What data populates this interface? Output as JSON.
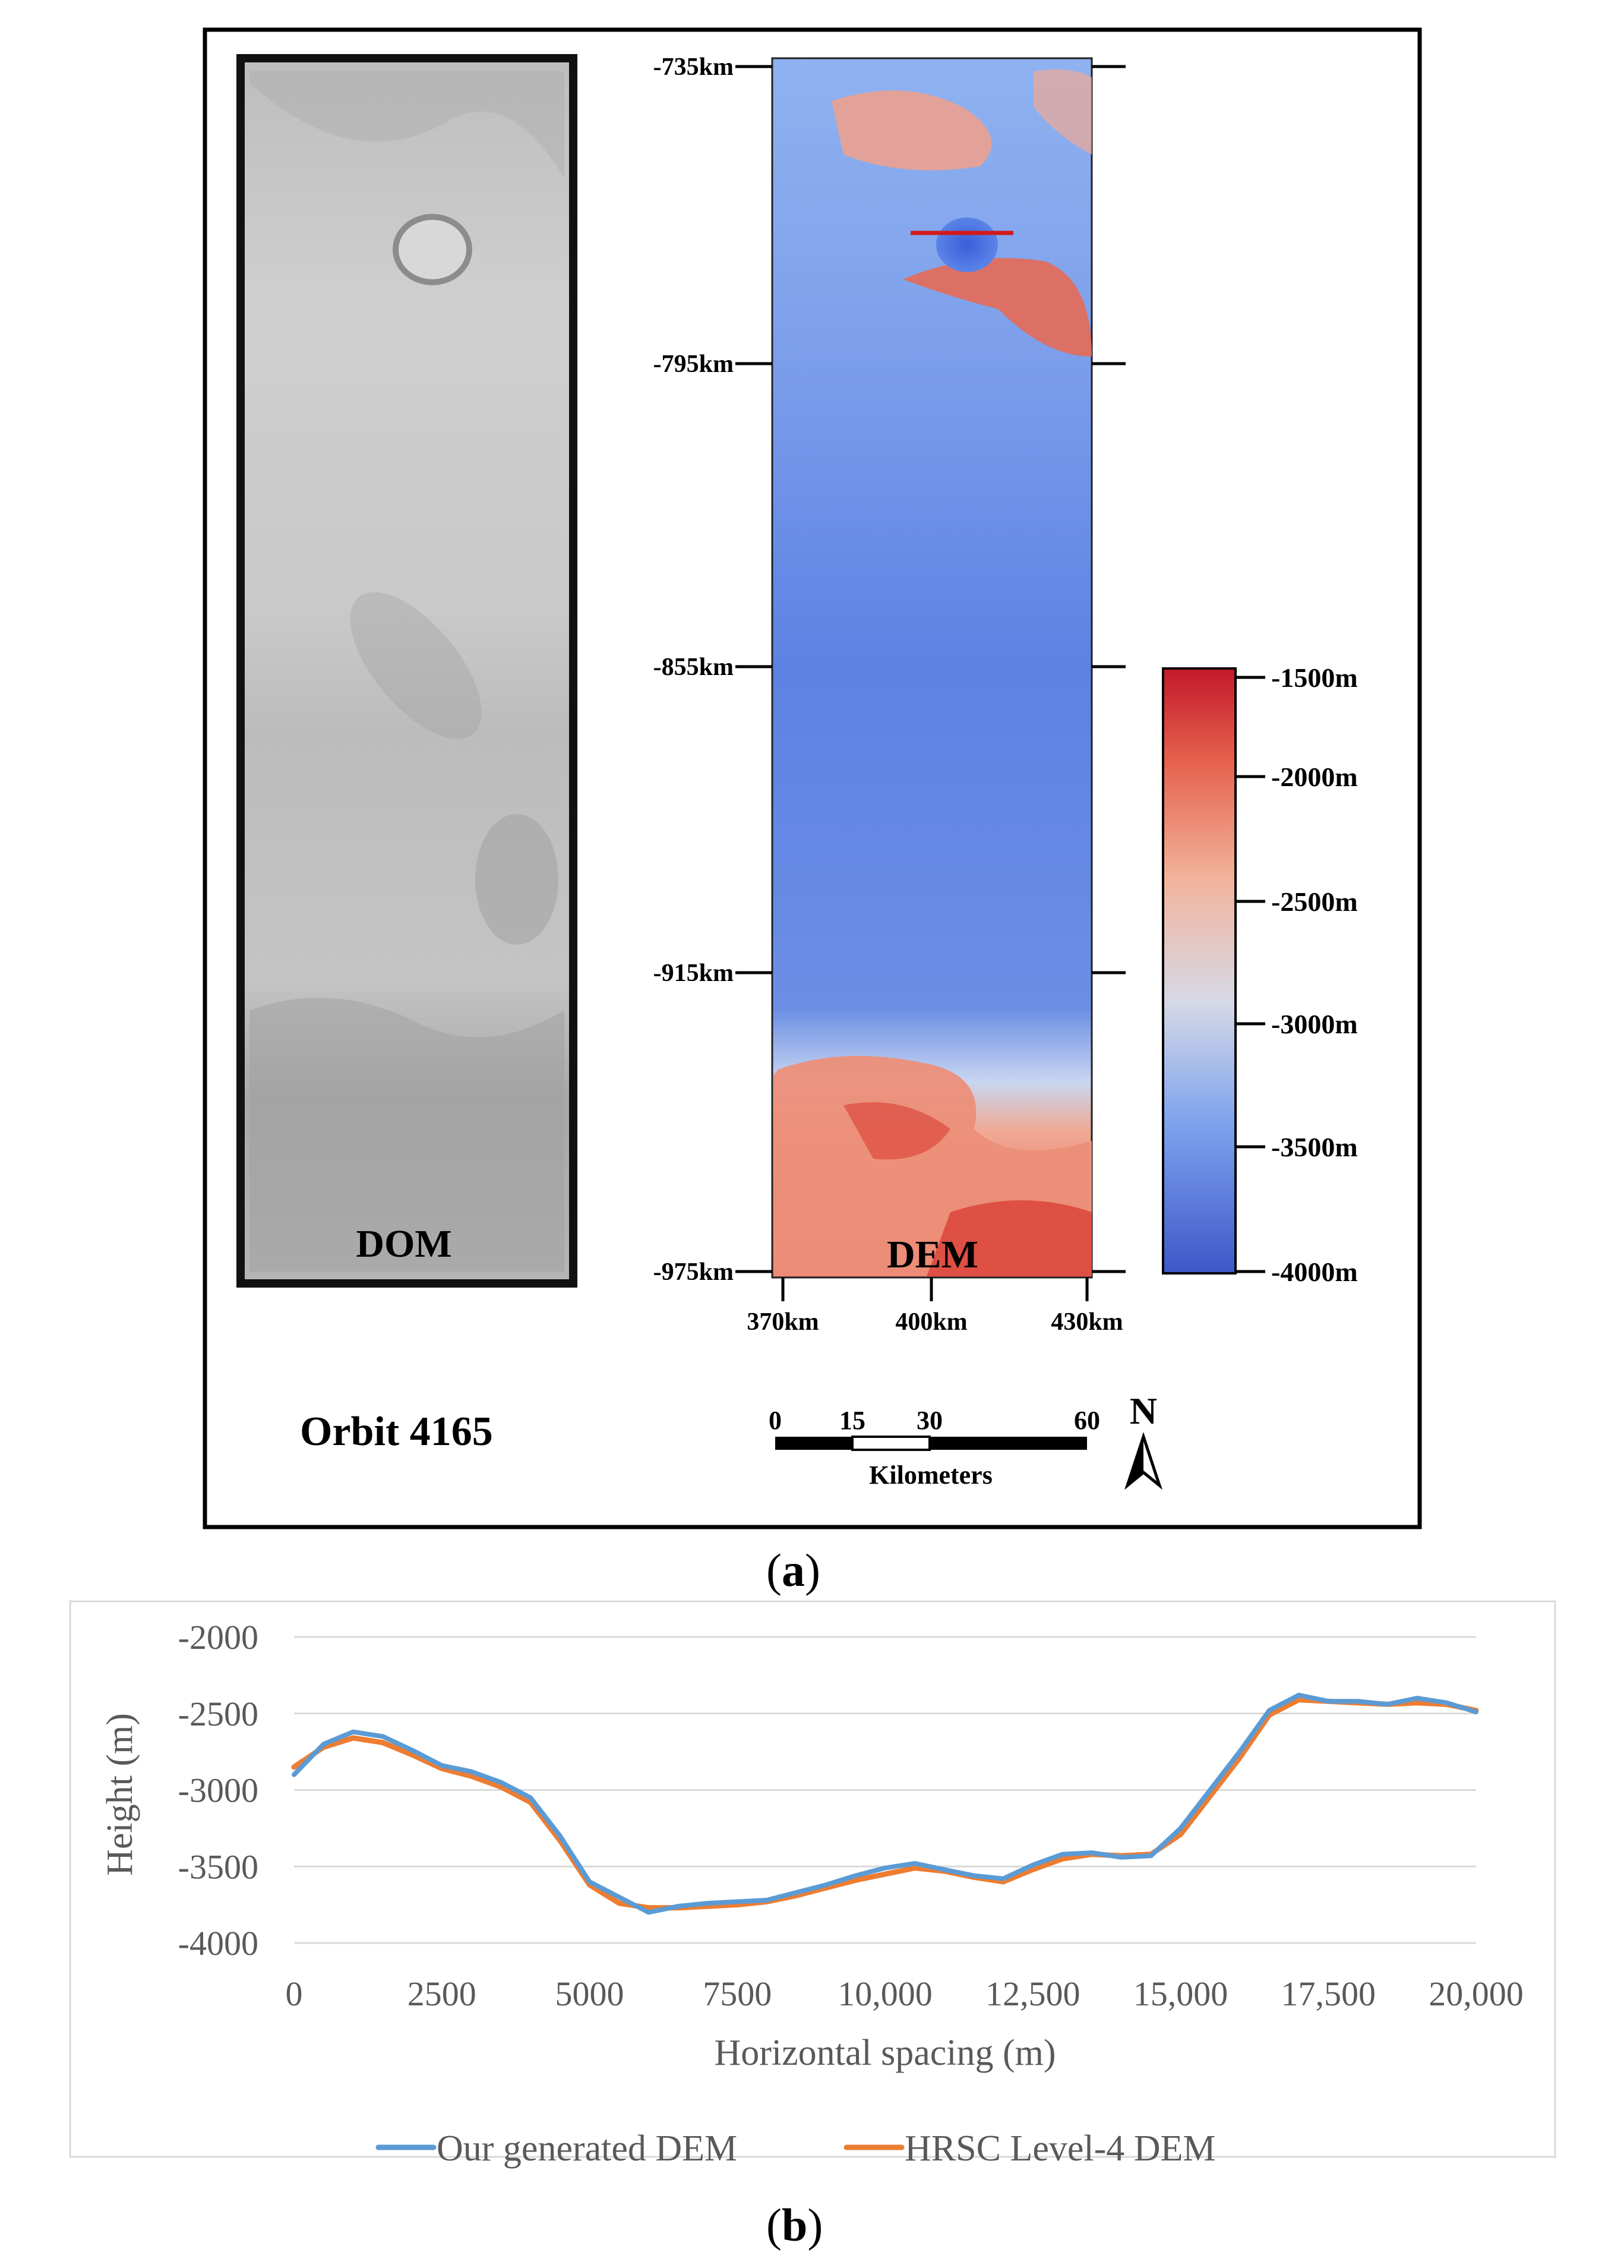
{
  "panel_a": {
    "caption_open": "(",
    "caption_letter": "a",
    "caption_close": ")",
    "dom_label": "DOM",
    "dem_label": "DEM",
    "orbit_label": "Orbit 4165",
    "y_ticks": [
      "-735km",
      "-795km",
      "-855km",
      "-915km",
      "-975km"
    ],
    "x_ticks": [
      "370km",
      "400km",
      "430km"
    ],
    "colorbar": {
      "labels": [
        "-1500m",
        "-2000m",
        "-2500m",
        "-3000m",
        "-3500m",
        "-4000m"
      ],
      "values": [
        -1500,
        -2000,
        -2500,
        -3000,
        -3500,
        -4000
      ],
      "range": [
        -4000,
        -1500
      ],
      "color_low": "#3d58c9",
      "color_mid": "#d6d9e6",
      "color_high": "#c2192b"
    },
    "scalebar": {
      "ticks": [
        "0",
        "15",
        "30",
        "60"
      ],
      "unit": "Kilometers"
    },
    "north_label": "N",
    "profile_line_color": "#d11a1a"
  },
  "panel_b": {
    "caption_open": "(",
    "caption_letter": "b",
    "caption_close": ")"
  },
  "chart_data": {
    "type": "line",
    "xlabel": "Horizontal spacing (m)",
    "ylabel": "Height (m)",
    "xlim": [
      0,
      20000
    ],
    "ylim": [
      -4000,
      -2000
    ],
    "x_ticks": [
      0,
      2500,
      5000,
      7500,
      10000,
      12500,
      15000,
      17500,
      20000
    ],
    "x_tick_labels": [
      "0",
      "2500",
      "5000",
      "7500",
      "10,000",
      "12,500",
      "15,000",
      "17,500",
      "20,000"
    ],
    "y_ticks": [
      -2000,
      -2500,
      -3000,
      -3500,
      -4000
    ],
    "y_tick_labels": [
      "-2000",
      "-2500",
      "-3000",
      "-3500",
      "-4000"
    ],
    "grid": true,
    "legend_position": "bottom",
    "series": [
      {
        "name": "Our generated DEM",
        "color": "#5b9bd5",
        "x": [
          0,
          500,
          1000,
          1500,
          2000,
          2500,
          3000,
          3500,
          4000,
          4500,
          5000,
          5500,
          6000,
          6500,
          7000,
          7500,
          8000,
          8500,
          9000,
          9500,
          10000,
          10500,
          11000,
          11500,
          12000,
          12500,
          13000,
          13500,
          14000,
          14500,
          15000,
          15500,
          16000,
          16500,
          17000,
          17500,
          18000,
          18500,
          19000,
          19500,
          20000
        ],
        "values": [
          -2900,
          -2700,
          -2620,
          -2650,
          -2740,
          -2840,
          -2880,
          -2950,
          -3050,
          -3300,
          -3600,
          -3700,
          -3800,
          -3760,
          -3740,
          -3730,
          -3720,
          -3670,
          -3620,
          -3560,
          -3510,
          -3480,
          -3520,
          -3560,
          -3580,
          -3490,
          -3420,
          -3410,
          -3440,
          -3430,
          -3250,
          -3000,
          -2750,
          -2480,
          -2380,
          -2420,
          -2420,
          -2440,
          -2400,
          -2430,
          -2490
        ]
      },
      {
        "name": "HRSC Level-4 DEM",
        "color": "#ed7d31",
        "x": [
          0,
          500,
          1000,
          1500,
          2000,
          2500,
          3000,
          3500,
          4000,
          4500,
          5000,
          5500,
          6000,
          6500,
          7000,
          7500,
          8000,
          8500,
          9000,
          9500,
          10000,
          10500,
          11000,
          11500,
          12000,
          12500,
          13000,
          13500,
          14000,
          14500,
          15000,
          15500,
          16000,
          16500,
          17000,
          17500,
          18000,
          18500,
          19000,
          19500,
          20000
        ],
        "values": [
          -2850,
          -2720,
          -2660,
          -2690,
          -2770,
          -2860,
          -2910,
          -2980,
          -3080,
          -3330,
          -3620,
          -3740,
          -3770,
          -3770,
          -3760,
          -3750,
          -3730,
          -3690,
          -3640,
          -3590,
          -3550,
          -3510,
          -3530,
          -3570,
          -3600,
          -3520,
          -3450,
          -3420,
          -3430,
          -3420,
          -3290,
          -3040,
          -2790,
          -2510,
          -2410,
          -2420,
          -2430,
          -2440,
          -2430,
          -2440,
          -2480
        ]
      }
    ]
  }
}
